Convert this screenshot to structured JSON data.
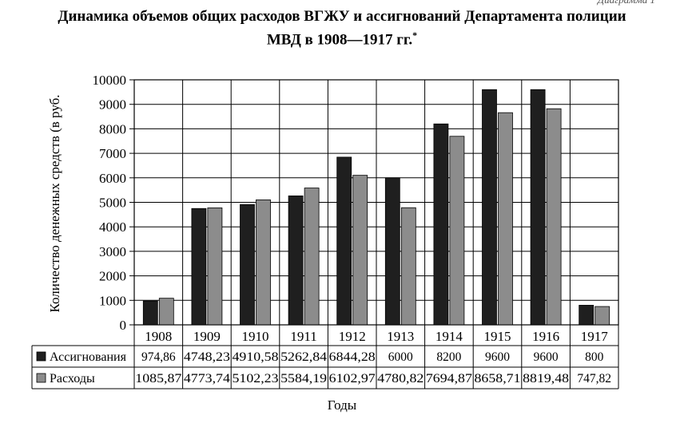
{
  "corner_text": "Диаграмма 1",
  "title_line1": "Динамика объемов общих расходов ВГЖУ и ассигнований Департамента полиции",
  "title_line2": "МВД в 1908—1917 гг.",
  "title_mark": "*",
  "chart_data": {
    "type": "bar",
    "categories": [
      "1908",
      "1909",
      "1910",
      "1911",
      "1912",
      "1913",
      "1914",
      "1915",
      "1916",
      "1917"
    ],
    "series": [
      {
        "name": "Ассигнования",
        "color": "#1f1f1f",
        "values": [
          974.86,
          4748.23,
          4910.58,
          5262.84,
          6844.28,
          6000,
          8200,
          9600,
          9600,
          800
        ],
        "labels": [
          "974,86",
          "4748,23",
          "4910,58",
          "5262,84",
          "6844,28",
          "6000",
          "8200",
          "9600",
          "9600",
          "800"
        ]
      },
      {
        "name": "Расходы",
        "color": "#8c8c8c",
        "values": [
          1085.87,
          4773.74,
          5102.23,
          5584.19,
          6102.97,
          4780.82,
          7694.87,
          8658.71,
          8819.48,
          747.82
        ],
        "labels": [
          "1085,87",
          "4773,74",
          "5102,23",
          "5584,19",
          "6102,97",
          "4780,82",
          "7694,87",
          "8658,71",
          "8819,48",
          "747,82"
        ]
      }
    ],
    "yticks": [
      "0",
      "1000",
      "2000",
      "3000",
      "4000",
      "5000",
      "6000",
      "7000",
      "8000",
      "9000",
      "10000"
    ],
    "ylim": [
      0,
      10000
    ],
    "ylabel": "Количество денежных средств (в руб.",
    "xlabel": "Годы",
    "grid": true,
    "legend": "data-table"
  }
}
